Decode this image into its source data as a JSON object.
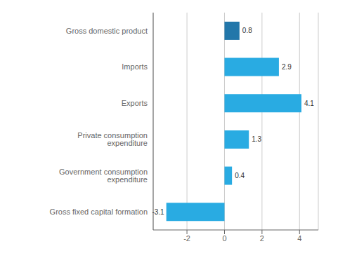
{
  "chart_data": {
    "type": "bar",
    "orientation": "horizontal",
    "categories": [
      "Gross fixed capital formation",
      "Government consumption expenditure",
      "Private consumption expenditure",
      "Exports",
      "Imports",
      "Gross domestic product"
    ],
    "values": [
      -3.1,
      0.4,
      1.3,
      4.1,
      2.9,
      0.8
    ],
    "colors": [
      "#29abe2",
      "#29abe2",
      "#29abe2",
      "#29abe2",
      "#29abe2",
      "#2277aa"
    ],
    "xlim": [
      -3.8,
      5.0
    ],
    "xticks": [
      -2,
      0,
      2,
      4
    ],
    "grid": true,
    "data_labels": true
  }
}
